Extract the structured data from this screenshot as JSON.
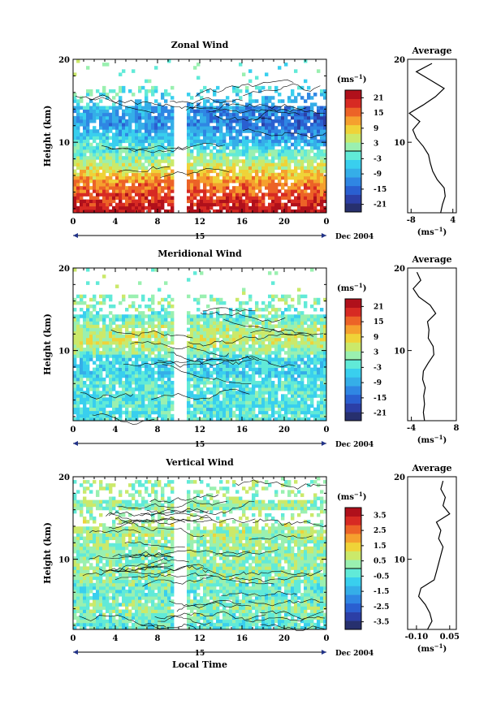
{
  "xlabel": "Local Time",
  "date_label": "Dec 2004",
  "day_label": "15",
  "colorbar_unit": "(ms",
  "colorbar_unit_exp": "−1",
  "avg_title": "Average",
  "avg_unit": "(ms",
  "avg_unit_exp": "−1",
  "chart_data": [
    {
      "type": "heatmap",
      "title": "Zonal Wind",
      "ylabel": "Height (km)",
      "x_ticks": [
        "0",
        "4",
        "8",
        "12",
        "16",
        "20",
        "0"
      ],
      "xlim": [
        0,
        24
      ],
      "ylim": [
        1.5,
        20
      ],
      "y_ticks": [
        "20",
        "10"
      ],
      "colorbar_ticks": [
        "21",
        "15",
        "9",
        "3",
        "-3",
        "-9",
        "-15",
        "-21"
      ],
      "colorbar_range": [
        -24,
        24
      ],
      "gap_x": [
        9.6,
        10.8
      ],
      "profile": [
        [
          2,
          22
        ],
        [
          3,
          19
        ],
        [
          4,
          16
        ],
        [
          5,
          14
        ],
        [
          6,
          10
        ],
        [
          7,
          6
        ],
        [
          8,
          2
        ],
        [
          9,
          -2
        ],
        [
          10,
          -6
        ],
        [
          11,
          -9
        ],
        [
          12,
          -12
        ],
        [
          13,
          -12
        ],
        [
          14,
          -10
        ],
        [
          15,
          -6
        ],
        [
          16,
          -4
        ],
        [
          17,
          0
        ]
      ],
      "avg_xlim": [
        -9,
        5
      ],
      "avg_x_ticks": [
        "-8",
        "4"
      ],
      "avg_y_ticks": [
        "20",
        "10"
      ],
      "avg_profile": [
        [
          1.5,
          0.5
        ],
        [
          2.5,
          1.0
        ],
        [
          3.5,
          1.8
        ],
        [
          4.5,
          1.5
        ],
        [
          5.5,
          -0.5
        ],
        [
          6.5,
          -1.8
        ],
        [
          7.5,
          -2.5
        ],
        [
          8.5,
          -3.0
        ],
        [
          9.5,
          -4.5
        ],
        [
          10.5,
          -6.5
        ],
        [
          11.5,
          -7.5
        ],
        [
          12.5,
          -5.5
        ],
        [
          13.5,
          -8.5
        ],
        [
          14.5,
          -4.5
        ],
        [
          15.5,
          -1.0
        ],
        [
          16.5,
          1.5
        ],
        [
          17.5,
          -2.5
        ],
        [
          18.5,
          -6.5
        ],
        [
          19.5,
          -2.0
        ]
      ]
    },
    {
      "type": "heatmap",
      "title": "Meridional Wind",
      "ylabel": "Height (km)",
      "x_ticks": [
        "0",
        "4",
        "8",
        "12",
        "16",
        "20",
        "0"
      ],
      "xlim": [
        0,
        24
      ],
      "ylim": [
        1.5,
        20
      ],
      "y_ticks": [
        "20",
        "10"
      ],
      "colorbar_ticks": [
        "21",
        "15",
        "9",
        "3",
        "-3",
        "-9",
        "-15",
        "-21"
      ],
      "colorbar_range": [
        -24,
        24
      ],
      "gap_x": [
        9.6,
        10.8
      ],
      "profile": [
        [
          2,
          -2
        ],
        [
          3,
          -3
        ],
        [
          4,
          -2
        ],
        [
          5,
          -3
        ],
        [
          6,
          -2
        ],
        [
          7,
          -4
        ],
        [
          8,
          -5
        ],
        [
          9,
          -4
        ],
        [
          10,
          2
        ],
        [
          11,
          5
        ],
        [
          12,
          4
        ],
        [
          13,
          3
        ],
        [
          14,
          -1
        ],
        [
          15,
          0
        ],
        [
          16,
          1
        ]
      ],
      "avg_xlim": [
        -5,
        8
      ],
      "avg_x_ticks": [
        "-4",
        "8"
      ],
      "avg_y_ticks": [
        "20",
        "10"
      ],
      "avg_profile": [
        [
          1.5,
          -0.5
        ],
        [
          2.5,
          -0.8
        ],
        [
          3.5,
          -0.5
        ],
        [
          4.5,
          -0.7
        ],
        [
          5.5,
          -0.3
        ],
        [
          6.5,
          -1.0
        ],
        [
          7.5,
          -0.8
        ],
        [
          8.5,
          0.5
        ],
        [
          9.5,
          2.0
        ],
        [
          10.5,
          1.8
        ],
        [
          11.5,
          0.5
        ],
        [
          12.5,
          0.7
        ],
        [
          13.5,
          0.3
        ],
        [
          14.5,
          2.5
        ],
        [
          15.5,
          1.0
        ],
        [
          16.5,
          -2.0
        ],
        [
          17.5,
          -3.5
        ],
        [
          18.5,
          -1.5
        ],
        [
          19.5,
          -2.5
        ]
      ]
    },
    {
      "type": "heatmap",
      "title": "Vertical Wind",
      "ylabel": "Height (km)",
      "x_ticks": [
        "0",
        "4",
        "8",
        "12",
        "16",
        "20",
        "0"
      ],
      "xlim": [
        0,
        24
      ],
      "ylim": [
        1.5,
        20
      ],
      "y_ticks": [
        "20",
        "10"
      ],
      "colorbar_ticks": [
        "3.5",
        "2.5",
        "1.5",
        "0.5",
        "-0.5",
        "-1.5",
        "-2.5",
        "-3.5"
      ],
      "colorbar_range": [
        -4,
        4
      ],
      "gap_x": [
        9.6,
        10.8
      ],
      "profile": [
        [
          2,
          -0.3
        ],
        [
          4,
          0.2
        ],
        [
          6,
          -0.2
        ],
        [
          8,
          0.3
        ],
        [
          10,
          0.1
        ],
        [
          12,
          0.4
        ],
        [
          14,
          0.5
        ],
        [
          16,
          0.3
        ],
        [
          18,
          0.2
        ]
      ],
      "avg_xlim": [
        -0.14,
        0.08
      ],
      "avg_x_ticks": [
        "-0.10",
        "0.05"
      ],
      "avg_y_ticks": [
        "20",
        "10"
      ],
      "avg_profile": [
        [
          1.5,
          -0.05
        ],
        [
          2.5,
          -0.03
        ],
        [
          3.5,
          -0.04
        ],
        [
          4.5,
          -0.06
        ],
        [
          5.5,
          -0.09
        ],
        [
          6.5,
          -0.08
        ],
        [
          7.5,
          -0.02
        ],
        [
          8.5,
          -0.01
        ],
        [
          9.5,
          0.0
        ],
        [
          10.5,
          0.01
        ],
        [
          11.5,
          0.02
        ],
        [
          12.5,
          0.0
        ],
        [
          13.5,
          0.01
        ],
        [
          14.5,
          -0.01
        ],
        [
          15.5,
          0.05
        ],
        [
          16.5,
          0.02
        ],
        [
          17.5,
          0.03
        ],
        [
          18.5,
          0.01
        ],
        [
          19.5,
          0.02
        ]
      ]
    }
  ]
}
